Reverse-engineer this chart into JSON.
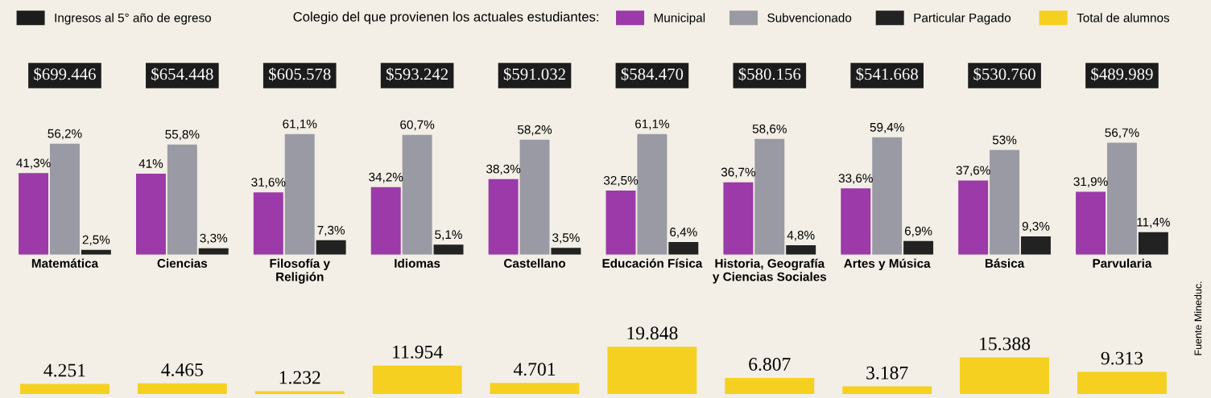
{
  "chart_data": [
    {
      "type": "other",
      "categories": [
        null,
        null,
        null,
        null,
        null,
        null,
        null,
        null,
        null,
        null
      ],
      "series": [
        {
          "name": "Ingresos al 5° año de egreso",
          "color": "#1c1c1c",
          "values": [
            699446,
            654448,
            605578,
            593242,
            591032,
            584470,
            580156,
            541668,
            530760,
            489989
          ],
          "value_labels": [
            "$699.446",
            "$654.448",
            "$605.578",
            "$593.242",
            "$591.032",
            "$584.470",
            "$580.156",
            "$541.668",
            "$530.760",
            "$489.989"
          ]
        }
      ],
      "legend": "top left",
      "data_labels": true
    },
    {
      "type": "bar",
      "categories": [
        "Matemática",
        "Ciencias",
        "Filosofía y\nReligión",
        "Idiomas",
        "Castellano",
        "Educación Física",
        "Historia, Geografía\ny Ciencias Sociales",
        "Artes y Música",
        "Básica",
        "Parvularia"
      ],
      "legend_title": "Colegio del que provienen los actuales estudiantes:",
      "series": [
        {
          "name": "Municipal",
          "color": "#9b3aa8",
          "values": [
            41.3,
            41,
            31.6,
            34.2,
            38.3,
            32.5,
            36.7,
            33.6,
            37.6,
            31.9
          ],
          "value_labels": [
            "41,3%",
            "41%",
            "31,6%",
            "34,2%",
            "38,3%",
            "32,5%",
            "36,7%",
            "33,6%",
            "37,6%",
            "31,9%"
          ]
        },
        {
          "name": "Subvencionado",
          "color": "#9a9aa4",
          "values": [
            56.2,
            55.8,
            61.1,
            60.7,
            58.2,
            61.1,
            58.6,
            59.4,
            53,
            56.7
          ],
          "value_labels": [
            "56,2%",
            "55,8%",
            "61,1%",
            "60,7%",
            "58,2%",
            "61,1%",
            "58,6%",
            "59,4%",
            "53%",
            "56,7%"
          ]
        },
        {
          "name": "Particular Pagado",
          "color": "#222222",
          "values": [
            2.5,
            3.3,
            7.3,
            5.1,
            3.5,
            6.4,
            4.8,
            6.9,
            9.3,
            11.4
          ],
          "value_labels": [
            "2,5%",
            "3,3%",
            "7,3%",
            "5,1%",
            "3,5%",
            "6,4%",
            "4,8%",
            "6,9%",
            "9,3%",
            "11,4%"
          ]
        }
      ],
      "legend": "top",
      "data_labels": true
    },
    {
      "type": "bar",
      "categories": [
        null,
        null,
        null,
        null,
        null,
        null,
        null,
        null,
        null,
        null
      ],
      "series": [
        {
          "name": "Total de alumnos",
          "color": "#f5d020",
          "values": [
            4251,
            4465,
            1232,
            11954,
            4701,
            19848,
            6807,
            3187,
            15388,
            9313
          ],
          "value_labels": [
            "4.251",
            "4.465",
            "1.232",
            "11.954",
            "4.701",
            "19.848",
            "6.807",
            "3.187",
            "15.388",
            "9.313"
          ]
        }
      ],
      "legend": "top right",
      "data_labels": true,
      "annotations": [
        "Fuente Mineduc."
      ]
    }
  ]
}
